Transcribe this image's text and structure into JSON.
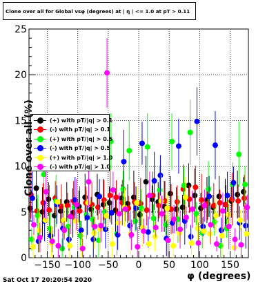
{
  "header": {
    "title": "Clone  over all for Global vsφ (degrees) at | η | <= 1.0 at pT > 0.11"
  },
  "footer": {
    "timestamp": "Sat Oct 17 20:20:54 2020"
  },
  "chart_data": {
    "type": "scatter",
    "xlabel": "φ (degrees)",
    "ylabel": "Clone  over all (%)",
    "xlim": [
      -180,
      180
    ],
    "ylim": [
      0,
      25
    ],
    "x_ticks": [
      -150,
      -100,
      -50,
      0,
      50,
      100,
      150
    ],
    "y_ticks": [
      0,
      5,
      10,
      15,
      20,
      25
    ],
    "grid": true,
    "legend_position": "middle-left",
    "series": [
      {
        "name": "(+) with pT/|q| > 0.1",
        "color": "#000000",
        "x": [
          -175,
          -165,
          -155,
          -145,
          -135,
          -125,
          -115,
          -105,
          -95,
          -85,
          -75,
          -65,
          -55,
          -45,
          -35,
          -25,
          -15,
          -5,
          5,
          15,
          25,
          35,
          45,
          55,
          65,
          75,
          85,
          95,
          105,
          115,
          125,
          135,
          145,
          155,
          165,
          175
        ],
        "y": [
          5.4,
          7.6,
          5.0,
          6.4,
          4.6,
          5.1,
          6.1,
          4.9,
          5.6,
          6.6,
          5.3,
          6.9,
          5.8,
          6.0,
          5.2,
          6.5,
          5.9,
          6.6,
          4.7,
          8.3,
          6.4,
          6.1,
          5.6,
          7.0,
          5.3,
          5.5,
          7.9,
          6.8,
          5.4,
          6.3,
          5.5,
          6.7,
          5.8,
          6.2,
          6.9,
          7.2
        ]
      },
      {
        "name": "(-) with pT/|q| > 0.1",
        "color": "#ff0000",
        "x": [
          -175,
          -165,
          -155,
          -145,
          -135,
          -125,
          -115,
          -105,
          -95,
          -85,
          -75,
          -65,
          -55,
          -45,
          -35,
          -25,
          -15,
          -5,
          5,
          15,
          25,
          35,
          45,
          55,
          65,
          75,
          85,
          95,
          105,
          115,
          125,
          135,
          145,
          155,
          165,
          175
        ],
        "y": [
          6.9,
          5.1,
          6.0,
          5.2,
          6.5,
          5.6,
          5.7,
          6.2,
          5.1,
          6.0,
          5.8,
          5.5,
          6.3,
          6.8,
          6.6,
          6.0,
          5.4,
          6.1,
          5.9,
          5.2,
          6.8,
          5.7,
          6.2,
          5.3,
          6.1,
          7.5,
          6.4,
          7.7,
          6.3,
          5.9,
          5.7,
          6.0,
          5.8,
          6.4,
          6.2,
          6.5
        ]
      },
      {
        "name": "(+) with pT/|q| > 0.5",
        "color": "#00ff00",
        "x": [
          -175,
          -165,
          -155,
          -145,
          -135,
          -125,
          -115,
          -105,
          -95,
          -85,
          -75,
          -65,
          -55,
          -45,
          -35,
          -25,
          -15,
          -5,
          5,
          15,
          25,
          35,
          45,
          55,
          65,
          75,
          85,
          95,
          105,
          115,
          125,
          135,
          145,
          155,
          165,
          175
        ],
        "y": [
          2.0,
          4.6,
          9.1,
          3.2,
          6.2,
          1.0,
          3.4,
          5.5,
          2.4,
          4.7,
          4.2,
          1.9,
          5.0,
          12.7,
          2.6,
          7.5,
          11.7,
          4.0,
          5.4,
          12.1,
          4.3,
          7.4,
          3.6,
          12.7,
          4.2,
          7.9,
          13.7,
          4.8,
          2.7,
          7.5,
          3.9,
          1.3,
          3.2,
          8.0,
          11.3,
          8.0
        ]
      },
      {
        "name": "(-) with pT/|q| > 0.5",
        "color": "#0000ff",
        "x": [
          -175,
          -165,
          -155,
          -145,
          -135,
          -125,
          -115,
          -105,
          -95,
          -85,
          -75,
          -65,
          -55,
          -45,
          -35,
          -25,
          -15,
          -5,
          5,
          15,
          25,
          35,
          45,
          55,
          65,
          75,
          85,
          95,
          105,
          115,
          125,
          135,
          145,
          155,
          165,
          175
        ],
        "y": [
          6.5,
          1.8,
          4.0,
          2.4,
          5.8,
          3.2,
          2.0,
          6.3,
          3.0,
          4.4,
          2.0,
          6.7,
          3.1,
          4.9,
          2.5,
          10.5,
          3.5,
          5.4,
          12.5,
          2.8,
          8.4,
          9.0,
          2.1,
          3.8,
          12.2,
          4.0,
          2.3,
          14.9,
          3.4,
          6.7,
          12.3,
          3.0,
          6.8,
          8.2,
          3.8,
          3.5
        ]
      },
      {
        "name": "(+) with pT/|q| > 1.0",
        "color": "#ffff00",
        "x": [
          -175,
          -165,
          -155,
          -145,
          -135,
          -125,
          -115,
          -105,
          -95,
          -85,
          -75,
          -65,
          -55,
          -45,
          -35,
          -25,
          -15,
          -5,
          5,
          15,
          25,
          35,
          45,
          55,
          65,
          75,
          85,
          95,
          105,
          115,
          125,
          135,
          145,
          155,
          165,
          175
        ],
        "y": [
          1.2,
          3.0,
          4.1,
          1.6,
          6.1,
          4.1,
          1.3,
          4.0,
          1.0,
          6.0,
          2.7,
          3.1,
          4.6,
          1.5,
          3.8,
          5.5,
          2.6,
          6.0,
          3.3,
          1.5,
          2.3,
          6.2,
          5.4,
          1.3,
          2.7,
          6.6,
          1.6,
          3.2,
          2.9,
          2.6,
          4.6,
          2.4,
          4.7,
          1.1,
          4.1,
          2.6
        ]
      },
      {
        "name": "(-) with pT/|q| > 1.0",
        "color": "#ff00ff",
        "x": [
          -175,
          -165,
          -155,
          -145,
          -135,
          -125,
          -115,
          -105,
          -95,
          -85,
          -75,
          -65,
          -55,
          -45,
          -35,
          -25,
          -15,
          -5,
          5,
          15,
          25,
          35,
          45,
          55,
          65,
          75,
          85,
          95,
          105,
          115,
          125,
          135,
          145,
          155,
          165,
          175
        ],
        "y": [
          3.6,
          2.2,
          7.2,
          1.8,
          1.3,
          3.0,
          4.5,
          5.8,
          1.0,
          8.3,
          3.4,
          3.5,
          20.2,
          7.4,
          4.8,
          5.3,
          2.5,
          1.2,
          2.9,
          6.8,
          3.3,
          4.8,
          1.9,
          4.2,
          3.1,
          4.4,
          5.3,
          1.6,
          5.7,
          3.6,
          1.5,
          5.1,
          3.4,
          2.0,
          1.4,
          5.5
        ]
      }
    ]
  }
}
